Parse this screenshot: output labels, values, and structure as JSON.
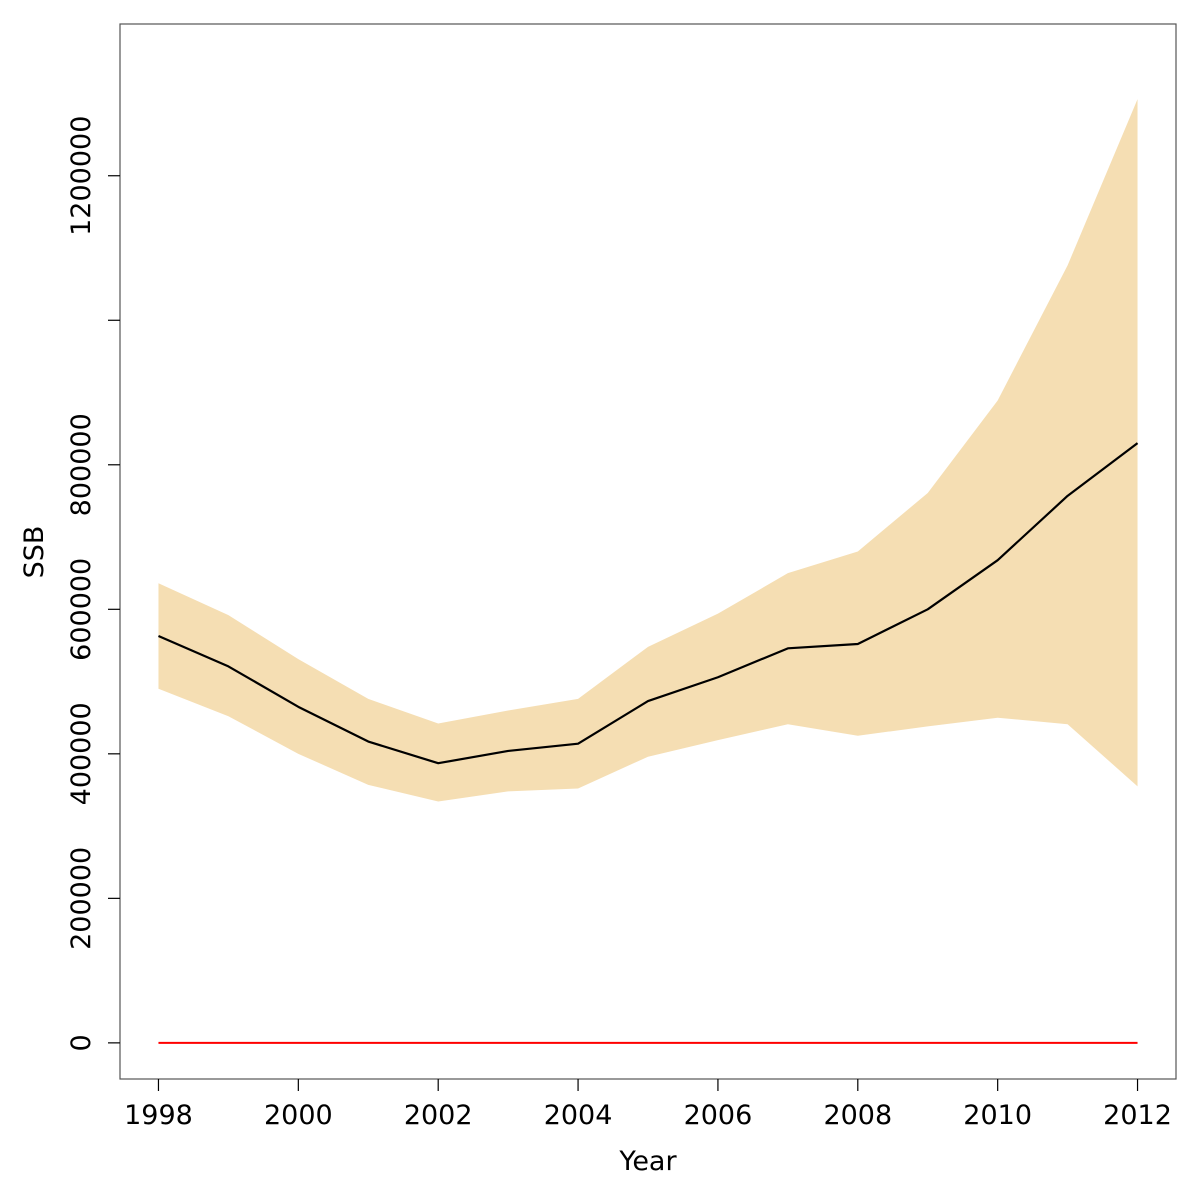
{
  "chart_data": {
    "type": "line",
    "title": "",
    "xlabel": "Year",
    "ylabel": "SSB",
    "xlim": [
      1997.45,
      2012.55
    ],
    "ylim": [
      -50000,
      1410000
    ],
    "x": [
      1998,
      1999,
      2000,
      2001,
      2002,
      2003,
      2004,
      2005,
      2006,
      2007,
      2008,
      2009,
      2010,
      2011,
      2012
    ],
    "series": [
      {
        "values": [
          563000,
          521000,
          465000,
          417000,
          387000,
          404000,
          414000,
          473000,
          506000,
          546000,
          552000,
          600000,
          668000,
          757000,
          830000
        ],
        "color": "#000000"
      }
    ],
    "band": {
      "lower": [
        490000,
        452000,
        400000,
        357000,
        334000,
        348000,
        352000,
        396000,
        419000,
        441000,
        425000,
        438000,
        450000,
        441000,
        355000
      ],
      "upper": [
        636000,
        592000,
        531000,
        476000,
        442000,
        460000,
        476000,
        548000,
        594000,
        650000,
        680000,
        761000,
        889000,
        1076000,
        1306000
      ],
      "color": "#F5DEB3"
    },
    "reference_line": {
      "value": 0,
      "color": "#FF0000"
    },
    "x_ticks": [
      1998,
      2000,
      2002,
      2004,
      2006,
      2008,
      2010,
      2012
    ],
    "y_ticks": [
      0,
      200000,
      400000,
      600000,
      800000,
      1000000,
      1200000
    ],
    "y_tick_labels": [
      "0",
      "200000",
      "400000",
      "600000",
      "800000",
      "",
      "1200000"
    ],
    "grid": false,
    "legend": "none"
  }
}
